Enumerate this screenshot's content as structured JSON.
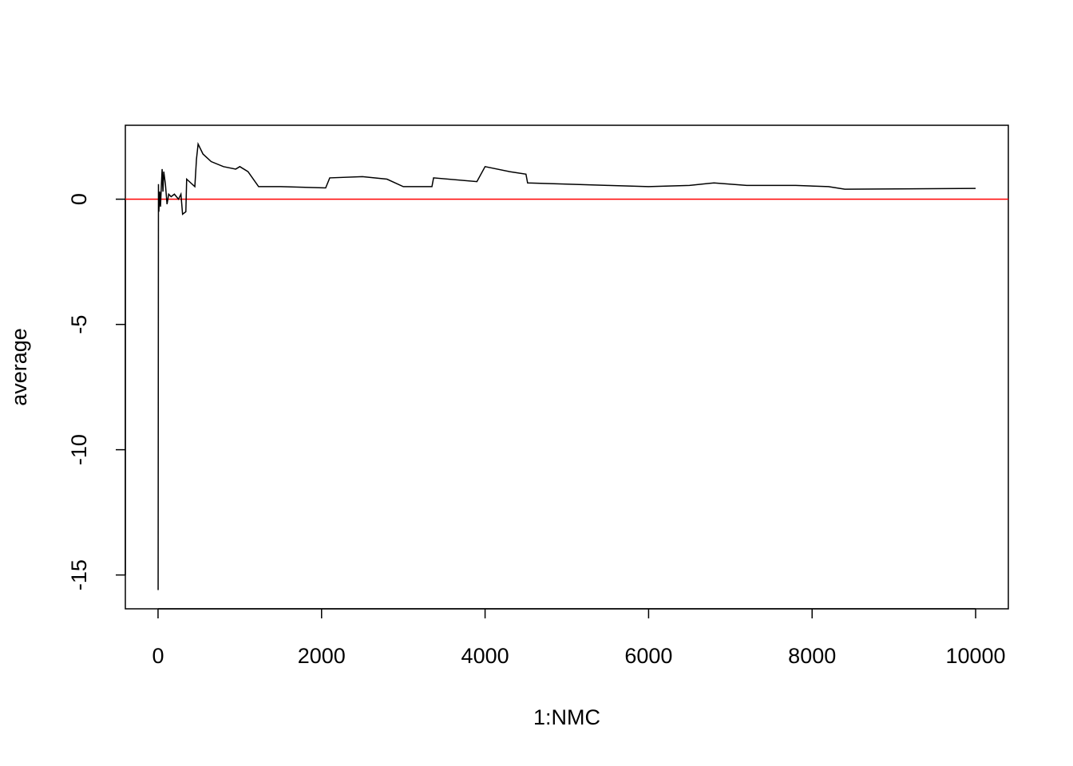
{
  "chart_data": {
    "type": "line",
    "xlabel": "1:NMC",
    "ylabel": "average",
    "x": [
      1,
      5,
      10,
      20,
      30,
      40,
      50,
      60,
      70,
      90,
      110,
      130,
      160,
      200,
      250,
      280,
      300,
      340,
      350,
      450,
      470,
      490,
      550,
      650,
      800,
      950,
      1000,
      1100,
      1230,
      1500,
      2050,
      2100,
      2500,
      2800,
      3000,
      3350,
      3370,
      3900,
      4000,
      4300,
      4500,
      4520,
      5000,
      5500,
      6000,
      6500,
      6800,
      7200,
      7800,
      8200,
      8400,
      10000
    ],
    "values": [
      -15.6,
      0.6,
      -0.5,
      0.3,
      -0.3,
      0.5,
      1.2,
      0.3,
      1.1,
      0.6,
      -0.2,
      0.2,
      0.1,
      0.2,
      0.0,
      0.2,
      -0.6,
      -0.5,
      0.8,
      0.5,
      1.6,
      2.2,
      1.8,
      1.5,
      1.3,
      1.2,
      1.3,
      1.1,
      0.5,
      0.5,
      0.45,
      0.85,
      0.9,
      0.8,
      0.5,
      0.5,
      0.85,
      0.7,
      1.3,
      1.1,
      1.0,
      0.65,
      0.6,
      0.55,
      0.5,
      0.55,
      0.65,
      0.55,
      0.55,
      0.5,
      0.4,
      0.43
    ],
    "color": "#000000",
    "reference_line": 0,
    "reference_color": "#ff0000",
    "xlim": [
      -400,
      10400
    ],
    "ylim": [
      -16.35,
      2.95
    ],
    "xticks": [
      0,
      2000,
      4000,
      6000,
      8000,
      10000
    ],
    "yticks": [
      -15,
      -10,
      -5,
      0
    ]
  }
}
